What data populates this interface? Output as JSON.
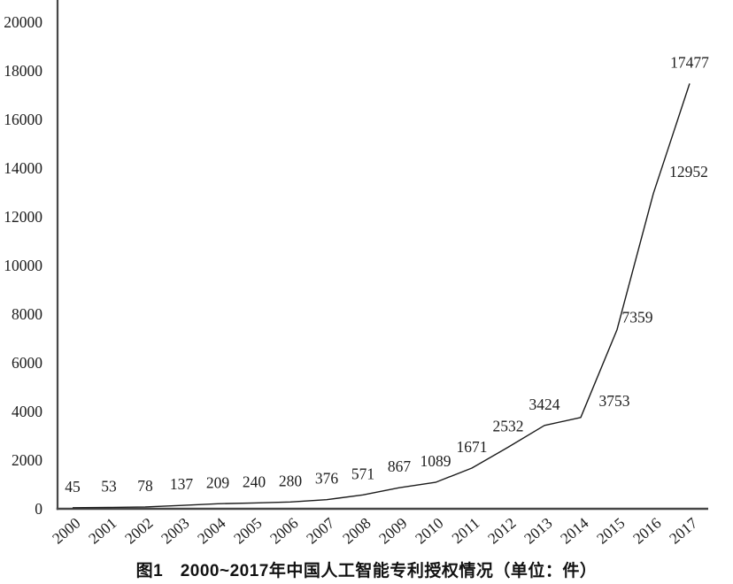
{
  "figure": {
    "caption": "图1　2000~2017年中国人工智能专利授权情况（单位：件）"
  },
  "chart_data": {
    "type": "line",
    "title": "图1 2000~2017年中国人工智能专利授权情况（单位：件）",
    "unit": "件",
    "categories": [
      "2000",
      "2001",
      "2002",
      "2003",
      "2004",
      "2005",
      "2006",
      "2007",
      "2008",
      "2009",
      "2010",
      "2011",
      "2012",
      "2013",
      "2014",
      "2015",
      "2016",
      "2017"
    ],
    "values": [
      45,
      53,
      78,
      137,
      209,
      240,
      280,
      376,
      571,
      867,
      1089,
      1671,
      2532,
      3424,
      3753,
      7359,
      12952,
      17477
    ],
    "xlabel": "",
    "ylabel": "",
    "ylim": [
      0,
      20000
    ],
    "ytick_step": 2000,
    "yticks": [
      0,
      2000,
      4000,
      6000,
      8000,
      10000,
      12000,
      14000,
      16000,
      18000,
      20000
    ],
    "grid": false,
    "legend": "none",
    "data_labels": true,
    "line_color": "#1b1b1b",
    "axis_color": "#474747",
    "text_color": "#1c1c1c"
  }
}
